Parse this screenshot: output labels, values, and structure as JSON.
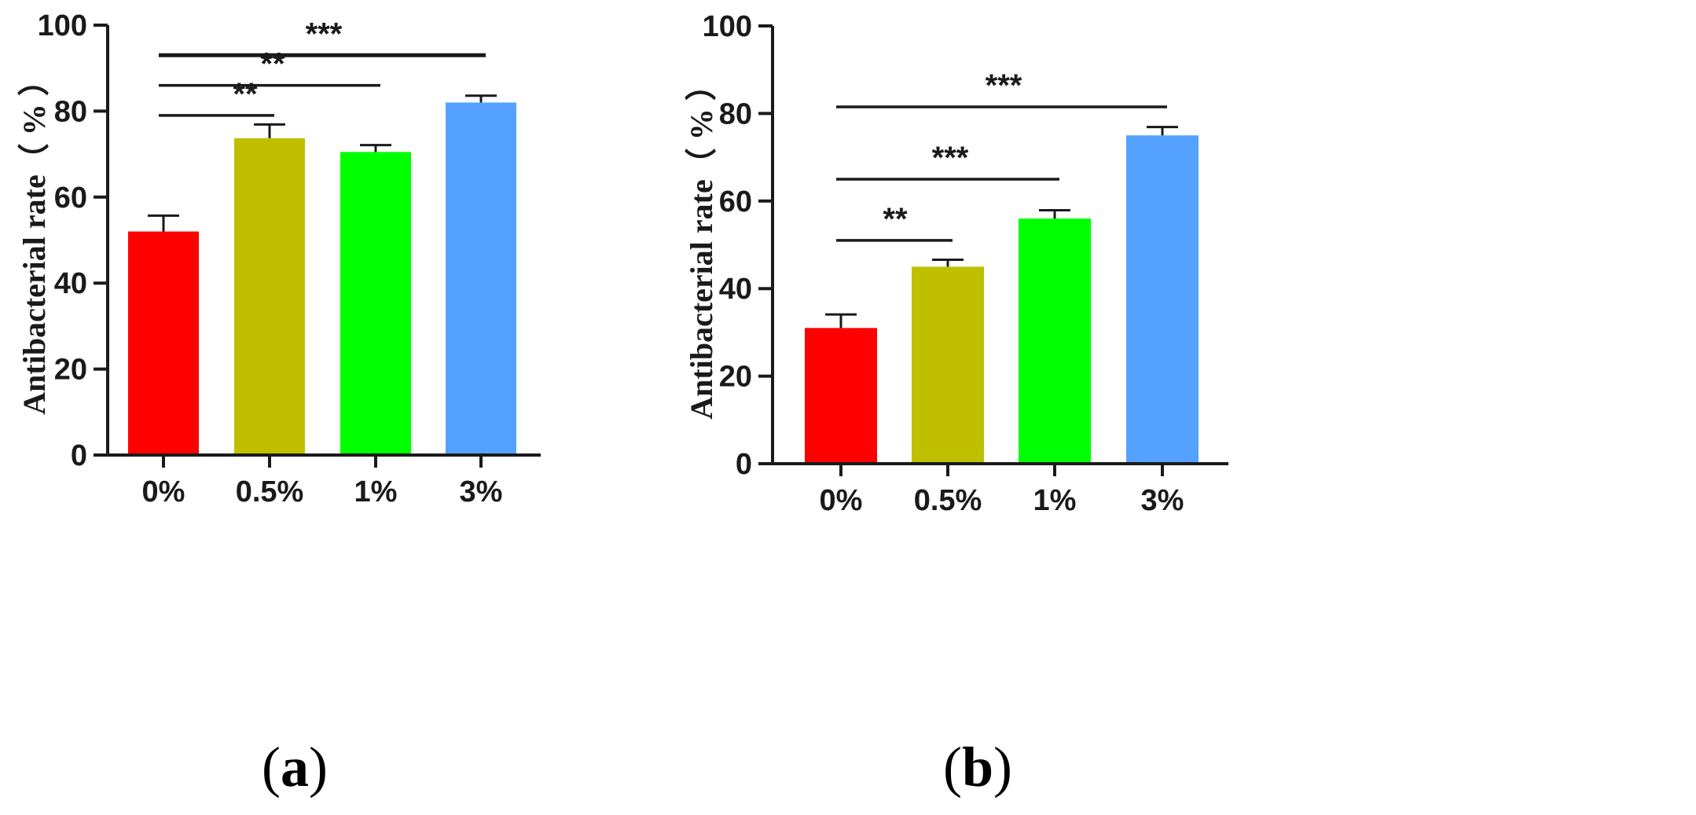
{
  "chart_data": [
    {
      "type": "bar",
      "panel_label": "a",
      "categories": [
        "0%",
        "0.5%",
        "1%",
        "3%"
      ],
      "values": [
        52,
        73.7,
        70.5,
        82
      ],
      "error_upper": [
        55.7,
        76.9,
        72.1,
        83.6
      ],
      "colors": [
        "#ff0000",
        "#bfbf00",
        "#00ff00",
        "#55a1ff"
      ],
      "ylabel": "Antibacterial rate（ % ）",
      "ylim": [
        0,
        100
      ],
      "yticks": [
        0,
        20,
        40,
        60,
        80,
        100
      ],
      "yticklabels": [
        "0",
        "20",
        "40",
        "60",
        "80",
        "100"
      ],
      "significance": [
        {
          "from": 0,
          "to": 1,
          "label": "**",
          "y": 79
        },
        {
          "from": 0,
          "to": 2,
          "label": "**",
          "y": 86
        },
        {
          "from": 0,
          "to": 3,
          "label": "***",
          "y": 93
        }
      ]
    },
    {
      "type": "bar",
      "panel_label": "b",
      "categories": [
        "0%",
        "0.5%",
        "1%",
        "3%"
      ],
      "values": [
        31,
        45,
        56,
        75
      ],
      "error_upper": [
        34.1,
        46.6,
        57.9,
        76.9
      ],
      "colors": [
        "#ff0000",
        "#bfbf00",
        "#00ff00",
        "#55a1ff"
      ],
      "ylabel": "Antibacterial rate（ % ）",
      "ylim": [
        0,
        100
      ],
      "yticks": [
        0,
        20,
        40,
        60,
        80,
        100
      ],
      "yticklabels": [
        "0",
        "20",
        "40",
        "60",
        "80",
        "100"
      ],
      "significance": [
        {
          "from": 0,
          "to": 1,
          "label": "**",
          "y": 51
        },
        {
          "from": 0,
          "to": 2,
          "label": "***",
          "y": 65
        },
        {
          "from": 0,
          "to": 3,
          "label": "***",
          "y": 81.5
        }
      ]
    }
  ]
}
